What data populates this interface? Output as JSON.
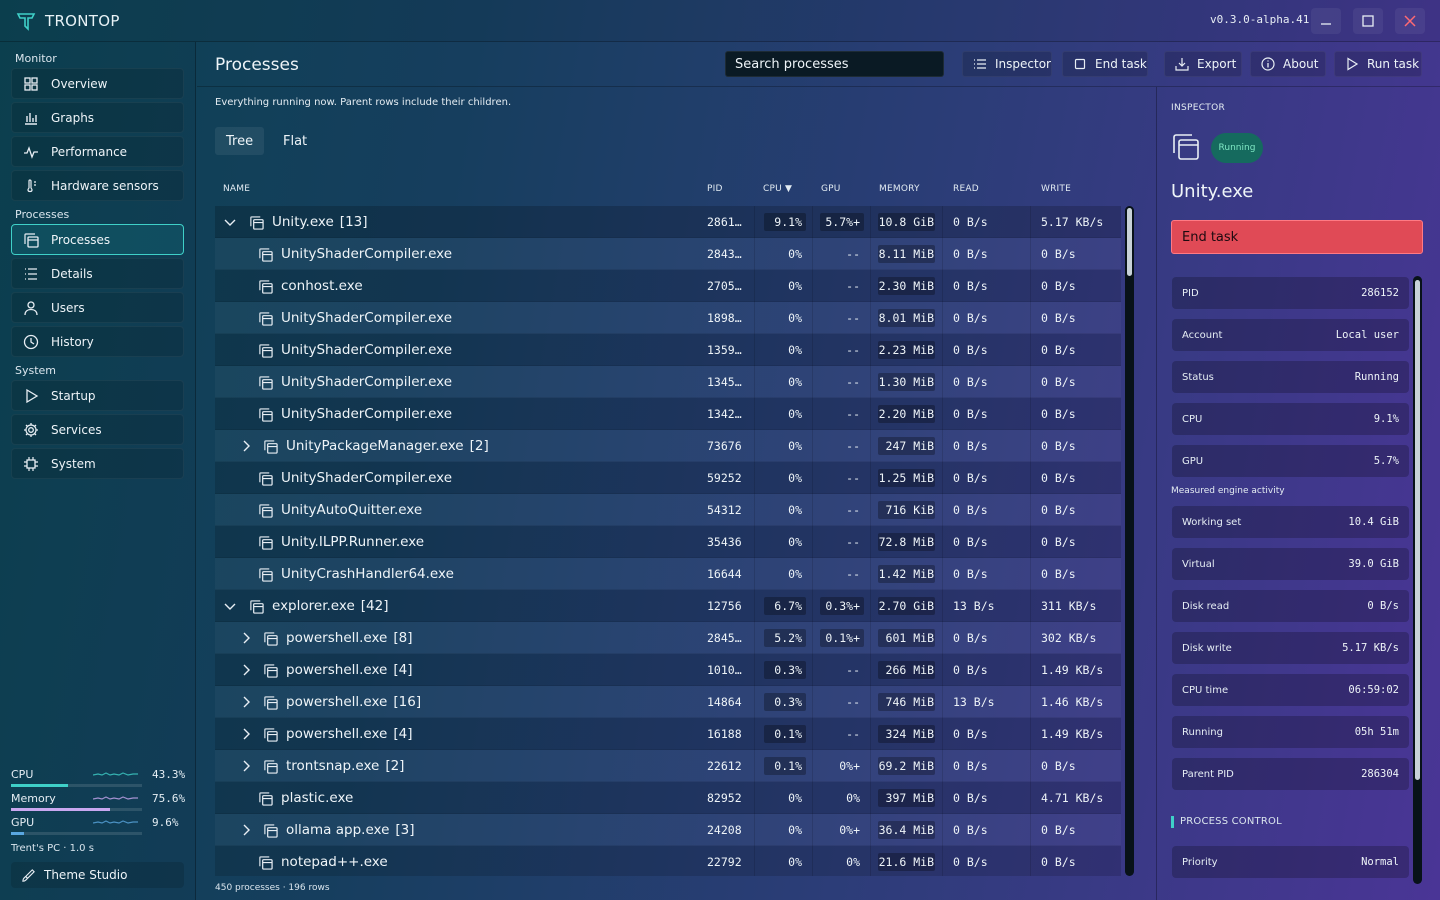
{
  "app": {
    "title": "TRONTOP",
    "version": "v0.3.0-alpha.41"
  },
  "sidebar": {
    "sections": [
      {
        "label": "Monitor",
        "items": [
          {
            "label": "Overview",
            "icon": "grid-icon"
          },
          {
            "label": "Graphs",
            "icon": "bar-chart-icon"
          },
          {
            "label": "Performance",
            "icon": "pulse-icon"
          },
          {
            "label": "Hardware sensors",
            "icon": "thermometer-icon"
          }
        ]
      },
      {
        "label": "Processes",
        "items": [
          {
            "label": "Processes",
            "icon": "windows-icon",
            "active": true
          },
          {
            "label": "Details",
            "icon": "list-icon"
          },
          {
            "label": "Users",
            "icon": "user-icon"
          },
          {
            "label": "History",
            "icon": "clock-icon"
          }
        ]
      },
      {
        "label": "System",
        "items": [
          {
            "label": "Startup",
            "icon": "play-icon"
          },
          {
            "label": "Services",
            "icon": "gear-icon"
          },
          {
            "label": "System",
            "icon": "chip-icon"
          }
        ]
      }
    ],
    "meters": [
      {
        "label": "CPU",
        "value": "43.3%",
        "fraction": 0.433,
        "color": "#3fd0c8"
      },
      {
        "label": "Memory",
        "value": "75.6%",
        "fraction": 0.756,
        "color": "#c9a8f0"
      },
      {
        "label": "GPU",
        "value": "9.6%",
        "fraction": 0.096,
        "color": "#5aa7e0"
      }
    ],
    "pc_info": "Trent's PC · 1.0 s",
    "theme_button": "Theme Studio"
  },
  "main": {
    "title": "Processes",
    "search_placeholder": "Search processes",
    "toolbar": {
      "inspector": "Inspector",
      "end_task": "End task",
      "export": "Export",
      "about": "About",
      "run_task": "Run task"
    },
    "subtitle": "Everything running now. Parent rows include their children.",
    "tabs": [
      "Tree",
      "Flat"
    ],
    "columns": [
      "NAME",
      "PID",
      "CPU ▼",
      "GPU",
      "MEMORY",
      "READ",
      "WRITE"
    ],
    "rows": [
      {
        "level": 0,
        "expand": "open",
        "name": "Unity.exe",
        "count": "[13]",
        "pid": "2861…",
        "cpu": "9.1%",
        "gpu": "5.7%+",
        "mem": "10.8 GiB",
        "read": "0 B/s",
        "write": "5.17 KB/s"
      },
      {
        "level": 1,
        "expand": "",
        "name": "UnityShaderCompiler.exe",
        "count": "",
        "pid": "2843…",
        "cpu": "0%",
        "gpu": "--",
        "mem": "8.11 MiB",
        "read": "0 B/s",
        "write": "0 B/s"
      },
      {
        "level": 1,
        "expand": "",
        "name": "conhost.exe",
        "count": "",
        "pid": "2705…",
        "cpu": "0%",
        "gpu": "--",
        "mem": "2.30 MiB",
        "read": "0 B/s",
        "write": "0 B/s"
      },
      {
        "level": 1,
        "expand": "",
        "name": "UnityShaderCompiler.exe",
        "count": "",
        "pid": "1898…",
        "cpu": "0%",
        "gpu": "--",
        "mem": "8.01 MiB",
        "read": "0 B/s",
        "write": "0 B/s"
      },
      {
        "level": 1,
        "expand": "",
        "name": "UnityShaderCompiler.exe",
        "count": "",
        "pid": "1359…",
        "cpu": "0%",
        "gpu": "--",
        "mem": "2.23 MiB",
        "read": "0 B/s",
        "write": "0 B/s"
      },
      {
        "level": 1,
        "expand": "",
        "name": "UnityShaderCompiler.exe",
        "count": "",
        "pid": "1345…",
        "cpu": "0%",
        "gpu": "--",
        "mem": "1.30 MiB",
        "read": "0 B/s",
        "write": "0 B/s"
      },
      {
        "level": 1,
        "expand": "",
        "name": "UnityShaderCompiler.exe",
        "count": "",
        "pid": "1342…",
        "cpu": "0%",
        "gpu": "--",
        "mem": "2.20 MiB",
        "read": "0 B/s",
        "write": "0 B/s"
      },
      {
        "level": 1,
        "expand": "closed",
        "name": "UnityPackageManager.exe",
        "count": "[2]",
        "pid": "73676",
        "cpu": "0%",
        "gpu": "--",
        "mem": "247 MiB",
        "read": "0 B/s",
        "write": "0 B/s"
      },
      {
        "level": 1,
        "expand": "",
        "name": "UnityShaderCompiler.exe",
        "count": "",
        "pid": "59252",
        "cpu": "0%",
        "gpu": "--",
        "mem": "1.25 MiB",
        "read": "0 B/s",
        "write": "0 B/s"
      },
      {
        "level": 1,
        "expand": "",
        "name": "UnityAutoQuitter.exe",
        "count": "",
        "pid": "54312",
        "cpu": "0%",
        "gpu": "--",
        "mem": "716 KiB",
        "read": "0 B/s",
        "write": "0 B/s"
      },
      {
        "level": 1,
        "expand": "",
        "name": "Unity.ILPP.Runner.exe",
        "count": "",
        "pid": "35436",
        "cpu": "0%",
        "gpu": "--",
        "mem": "72.8 MiB",
        "read": "0 B/s",
        "write": "0 B/s"
      },
      {
        "level": 1,
        "expand": "",
        "name": "UnityCrashHandler64.exe",
        "count": "",
        "pid": "16644",
        "cpu": "0%",
        "gpu": "--",
        "mem": "1.42 MiB",
        "read": "0 B/s",
        "write": "0 B/s"
      },
      {
        "level": 0,
        "expand": "open",
        "name": "explorer.exe",
        "count": "[42]",
        "pid": "12756",
        "cpu": "6.7%",
        "gpu": "0.3%+",
        "mem": "2.70 GiB",
        "read": "13 B/s",
        "write": "311 KB/s"
      },
      {
        "level": 1,
        "expand": "closed",
        "name": "powershell.exe",
        "count": "[8]",
        "pid": "2845…",
        "cpu": "5.2%",
        "gpu": "0.1%+",
        "mem": "601 MiB",
        "read": "0 B/s",
        "write": "302 KB/s"
      },
      {
        "level": 1,
        "expand": "closed",
        "name": "powershell.exe",
        "count": "[4]",
        "pid": "1010…",
        "cpu": "0.3%",
        "gpu": "--",
        "mem": "266 MiB",
        "read": "0 B/s",
        "write": "1.49 KB/s"
      },
      {
        "level": 1,
        "expand": "closed",
        "name": "powershell.exe",
        "count": "[16]",
        "pid": "14864",
        "cpu": "0.3%",
        "gpu": "--",
        "mem": "746 MiB",
        "read": "13 B/s",
        "write": "1.46 KB/s"
      },
      {
        "level": 1,
        "expand": "closed",
        "name": "powershell.exe",
        "count": "[4]",
        "pid": "16188",
        "cpu": "0.1%",
        "gpu": "--",
        "mem": "324 MiB",
        "read": "0 B/s",
        "write": "1.49 KB/s"
      },
      {
        "level": 1,
        "expand": "closed",
        "name": "trontsnap.exe",
        "count": "[2]",
        "pid": "22612",
        "cpu": "0.1%",
        "gpu": "0%+",
        "mem": "69.2 MiB",
        "read": "0 B/s",
        "write": "0 B/s"
      },
      {
        "level": 1,
        "expand": "",
        "name": "plastic.exe",
        "count": "",
        "pid": "82952",
        "cpu": "0%",
        "gpu": "0%",
        "mem": "397 MiB",
        "read": "0 B/s",
        "write": "4.71 KB/s"
      },
      {
        "level": 1,
        "expand": "closed",
        "name": "ollama app.exe",
        "count": "[3]",
        "pid": "24208",
        "cpu": "0%",
        "gpu": "0%+",
        "mem": "36.4 MiB",
        "read": "0 B/s",
        "write": "0 B/s"
      },
      {
        "level": 1,
        "expand": "",
        "name": "notepad++.exe",
        "count": "",
        "pid": "22792",
        "cpu": "0%",
        "gpu": "0%",
        "mem": "21.6 MiB",
        "read": "0 B/s",
        "write": "0 B/s"
      }
    ],
    "footer": "450 processes · 196 rows"
  },
  "inspector": {
    "label": "INSPECTOR",
    "status_badge": "Running",
    "name": "Unity.exe",
    "end_task": "End task",
    "fields": [
      {
        "k": "PID",
        "v": "286152"
      },
      {
        "k": "Account",
        "v": "Local user"
      },
      {
        "k": "Status",
        "v": "Running"
      },
      {
        "k": "CPU",
        "v": "9.1%"
      },
      {
        "k": "GPU",
        "v": "5.7%"
      }
    ],
    "measured_label": "Measured engine activity",
    "measured": [
      {
        "k": "Working set",
        "v": "10.4 GiB"
      },
      {
        "k": "Virtual",
        "v": "39.0 GiB"
      },
      {
        "k": "Disk read",
        "v": "0 B/s"
      },
      {
        "k": "Disk write",
        "v": "5.17 KB/s"
      },
      {
        "k": "CPU time",
        "v": "06:59:02"
      },
      {
        "k": "Running",
        "v": "05h 51m"
      },
      {
        "k": "Parent PID",
        "v": "286304"
      }
    ],
    "process_control_label": "PROCESS CONTROL",
    "priority": {
      "k": "Priority",
      "v": "Normal"
    }
  },
  "colors": {
    "accent": "#3fd0c8",
    "danger": "#e04a56",
    "running_badge": "#156a5e"
  }
}
